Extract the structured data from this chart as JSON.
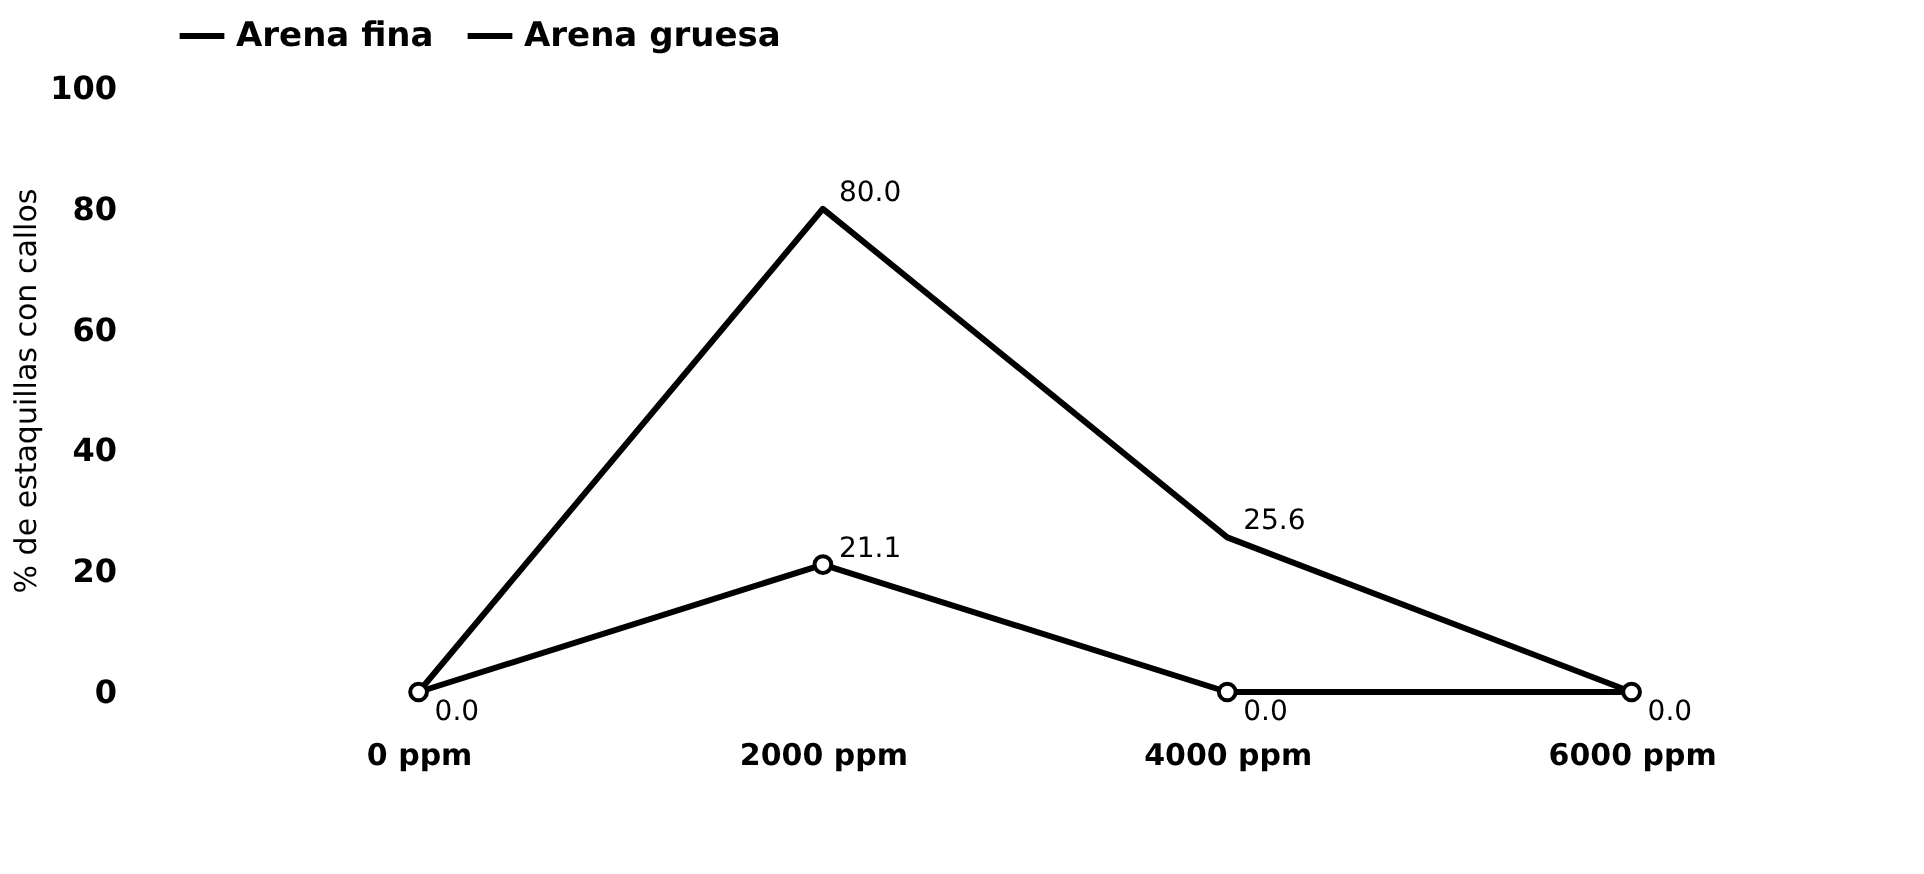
{
  "chart_data": {
    "type": "line",
    "ylabel": "% de estaquillas con callos",
    "categories": [
      "0 ppm",
      "2000 ppm",
      "4000 ppm",
      "6000 ppm"
    ],
    "series": [
      {
        "name": "Arena fina",
        "color": "#000000",
        "values": [
          0,
          80,
          25.6,
          0
        ],
        "value_labels": [
          null,
          "80.0",
          "25.6",
          null
        ]
      },
      {
        "name": "Arena gruesa",
        "color": "#000000",
        "values": [
          0,
          21.1,
          0,
          0
        ],
        "marker": "circle",
        "value_labels": [
          "0.0",
          "21.1",
          "0.0",
          "0.0"
        ]
      }
    ],
    "ylim": [
      0,
      100
    ],
    "yticks": [
      0,
      20,
      40,
      60,
      80,
      100
    ],
    "grid": false,
    "legend": "top",
    "line_style": "solid"
  }
}
